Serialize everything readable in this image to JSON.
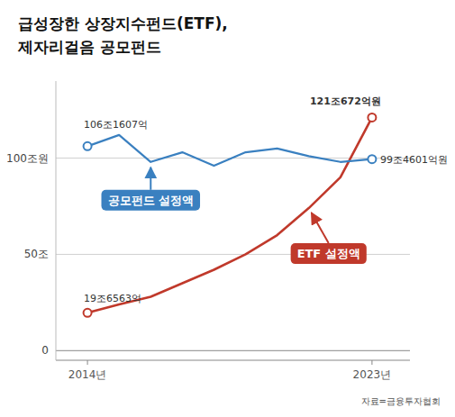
{
  "chart_data": {
    "type": "line",
    "title": "급성장한 상장지수펀드(ETF),",
    "subtitle": "제자리걸음 공모펀드",
    "x": [
      2014,
      2015,
      2016,
      2017,
      2018,
      2019,
      2020,
      2021,
      2022,
      2023
    ],
    "xlim": [
      2013.0,
      2024.2
    ],
    "xticks": [
      {
        "value": 2014,
        "label": "2014년"
      },
      {
        "value": 2023,
        "label": "2023년"
      }
    ],
    "ylim": [
      -5,
      140
    ],
    "yticks": [
      0,
      {
        "value": 50,
        "label": "50조"
      },
      {
        "value": 100,
        "label": "100조원"
      }
    ],
    "grid": true,
    "data_labels": true,
    "series": [
      {
        "name": "ETF 설정액",
        "color": "#c0392b",
        "values": [
          19.6563,
          24,
          28,
          35,
          42,
          50,
          60,
          74,
          90,
          121.0672
        ],
        "value_labels": [
          "19조6563억",
          null,
          null,
          null,
          null,
          null,
          null,
          null,
          null,
          "121조672억원"
        ]
      },
      {
        "name": "공모펀드 설정액",
        "color": "#3a80c0",
        "values": [
          106.1607,
          112,
          98,
          103,
          96,
          103,
          105,
          101,
          98,
          99.4601
        ],
        "value_labels": [
          "106조1607억",
          null,
          null,
          null,
          null,
          null,
          null,
          null,
          null,
          "99조4601억원"
        ]
      }
    ],
    "annotations": [
      "자료=금융투자협회"
    ]
  }
}
